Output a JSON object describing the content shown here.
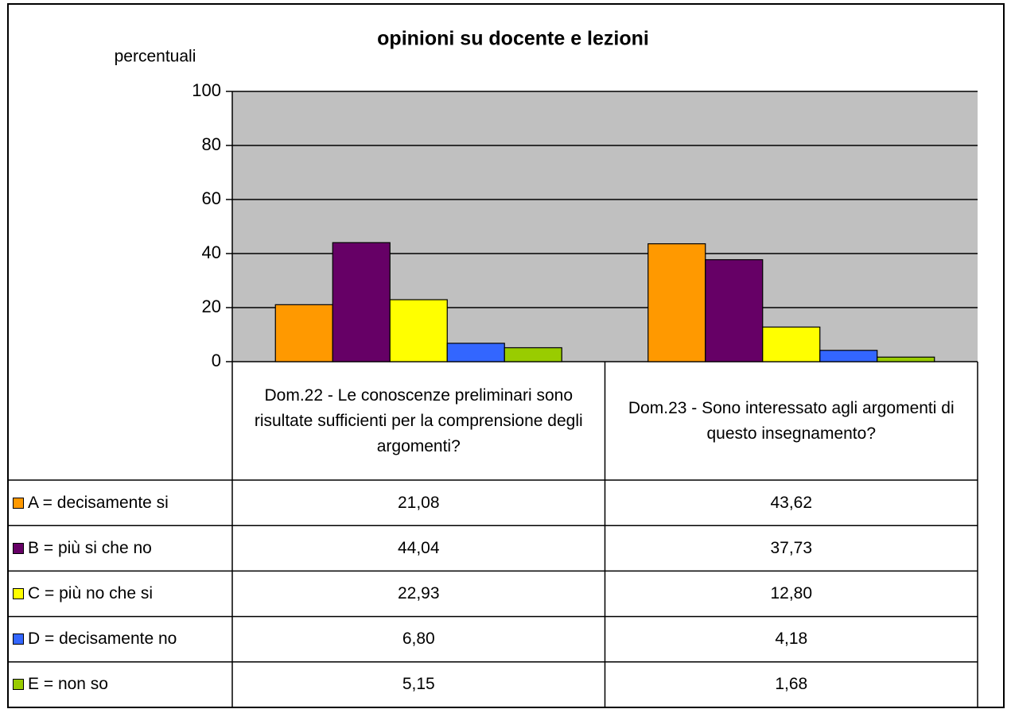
{
  "chart_data": {
    "type": "bar",
    "title": "opinioni su docente e lezioni",
    "y_label": "percentuali",
    "categories": [
      "Dom.22 - Le conoscenze preliminari sono risultate sufficienti per la comprensione degli argomenti?",
      "Dom.23 - Sono interessato agli argomenti di questo insegnamento?"
    ],
    "series": [
      {
        "name": "A = decisamente si",
        "color": "#ff9900",
        "values": [
          21.08,
          43.62
        ],
        "value_labels": [
          "21,08",
          "43,62"
        ]
      },
      {
        "name": "B = più si che no",
        "color": "#660066",
        "values": [
          44.04,
          37.73
        ],
        "value_labels": [
          "44,04",
          "37,73"
        ]
      },
      {
        "name": "C = più no che si",
        "color": "#ffff00",
        "values": [
          22.93,
          12.8
        ],
        "value_labels": [
          "22,93",
          "12,80"
        ]
      },
      {
        "name": "D = decisamente no",
        "color": "#3366ff",
        "values": [
          6.8,
          4.18
        ],
        "value_labels": [
          "6,80",
          "4,18"
        ]
      },
      {
        "name": "E = non so",
        "color": "#99cc00",
        "values": [
          5.15,
          1.68
        ],
        "value_labels": [
          "5,15",
          "1,68"
        ]
      }
    ],
    "ylim": [
      0,
      100
    ],
    "yticks": [
      0,
      20,
      40,
      60,
      80,
      100
    ],
    "grid": true,
    "plot_background": "#c0c0c0"
  }
}
